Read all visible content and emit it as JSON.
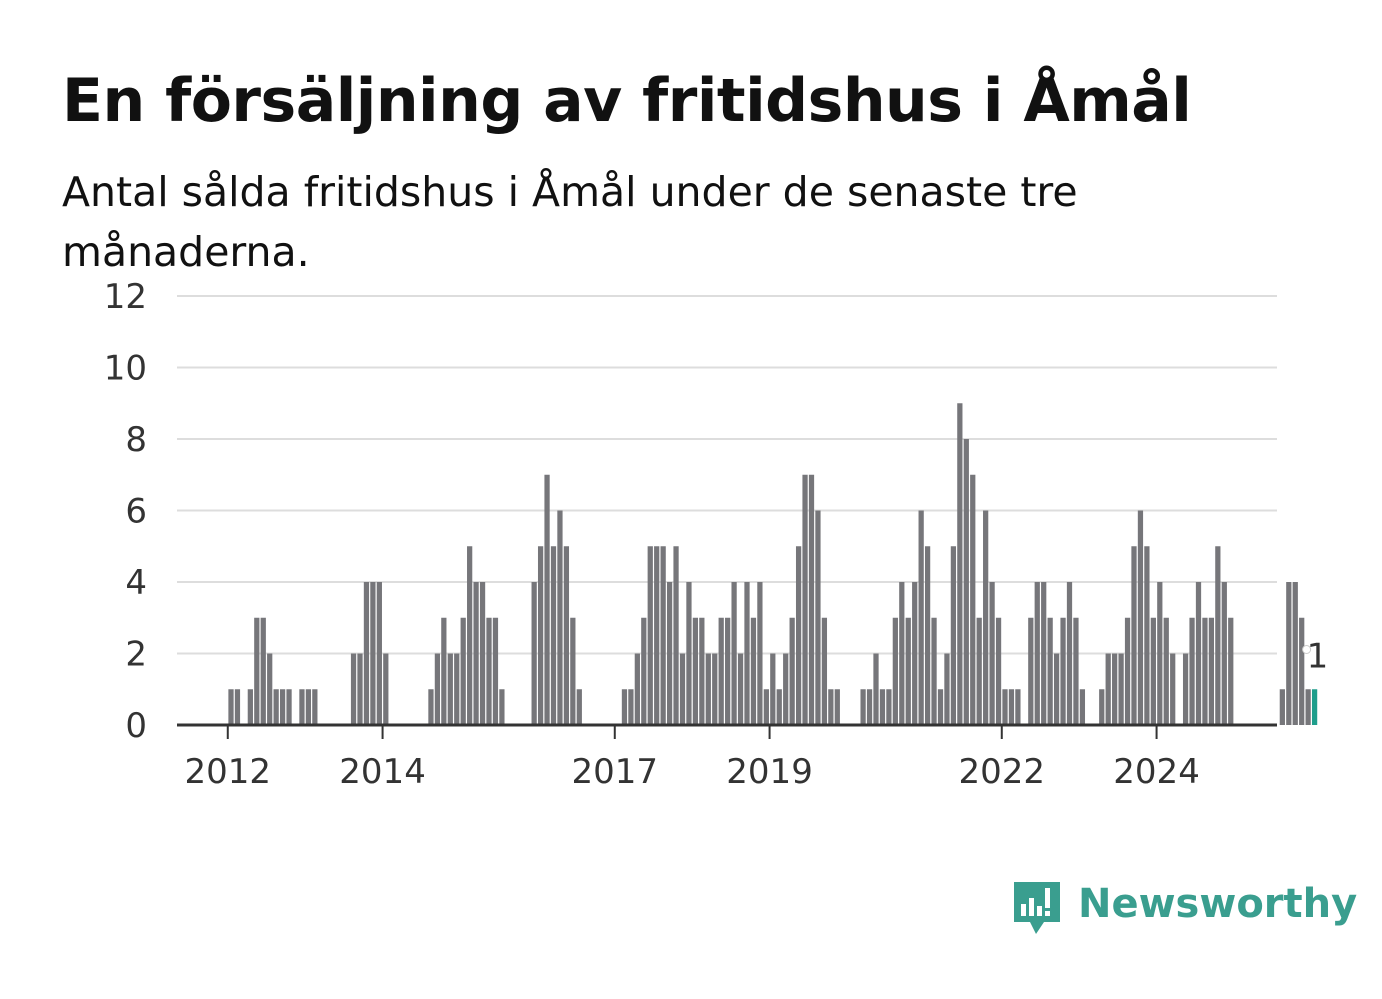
{
  "title": "En försäljning av fritidshus i Åmål",
  "subtitle": "Antal sålda fritidshus i Åmål under de senaste tre månaderna.",
  "brand": {
    "name": "Newsworthy",
    "icon": "newsworthy-logo-icon",
    "color": "#3a9e8f"
  },
  "colors": {
    "bar": "#76767a",
    "highlight": "#1e9e8c",
    "grid": "#dddddd",
    "axis": "#333333"
  },
  "chart_data": {
    "type": "bar",
    "title": "En försäljning av fritidshus i Åmål",
    "subtitle": "Antal sålda fritidshus i Åmål under de senaste tre månaderna.",
    "xlabel": "",
    "ylabel": "",
    "ylim": [
      0,
      12
    ],
    "yticks": [
      0,
      2,
      4,
      6,
      8,
      10,
      12
    ],
    "grid": true,
    "legend": "none",
    "xtick_labels": [
      "2012",
      "2014",
      "2017",
      "2019",
      "2022",
      "2024"
    ],
    "start": "2011-01",
    "frequency": "monthly",
    "values": [
      0,
      0,
      0,
      0,
      0,
      0,
      0,
      0,
      0,
      0,
      0,
      0,
      1,
      1,
      0,
      1,
      3,
      3,
      2,
      1,
      1,
      1,
      0,
      1,
      1,
      1,
      0,
      0,
      0,
      0,
      0,
      2,
      2,
      4,
      4,
      4,
      2,
      0,
      0,
      0,
      0,
      0,
      0,
      1,
      2,
      3,
      2,
      2,
      3,
      5,
      4,
      4,
      3,
      3,
      1,
      0,
      0,
      0,
      0,
      4,
      5,
      7,
      5,
      6,
      5,
      3,
      1,
      0,
      0,
      0,
      0,
      0,
      0,
      1,
      1,
      2,
      3,
      5,
      5,
      5,
      4,
      5,
      2,
      4,
      3,
      3,
      2,
      2,
      3,
      3,
      4,
      2,
      4,
      3,
      4,
      1,
      2,
      1,
      2,
      3,
      5,
      7,
      7,
      6,
      3,
      1,
      1,
      0,
      0,
      0,
      1,
      1,
      2,
      1,
      1,
      3,
      4,
      3,
      4,
      6,
      5,
      3,
      1,
      2,
      5,
      9,
      8,
      7,
      3,
      6,
      4,
      3,
      1,
      1,
      1,
      0,
      3,
      4,
      4,
      3,
      2,
      3,
      4,
      3,
      1,
      0,
      0,
      1,
      2,
      2,
      2,
      3,
      5,
      6,
      5,
      3,
      4,
      3,
      2,
      0,
      2,
      3,
      4,
      3,
      3,
      5,
      4,
      3,
      0,
      0,
      0,
      0,
      0,
      0,
      0,
      1,
      4,
      4,
      3,
      1,
      1
    ],
    "highlight_label": "1"
  }
}
